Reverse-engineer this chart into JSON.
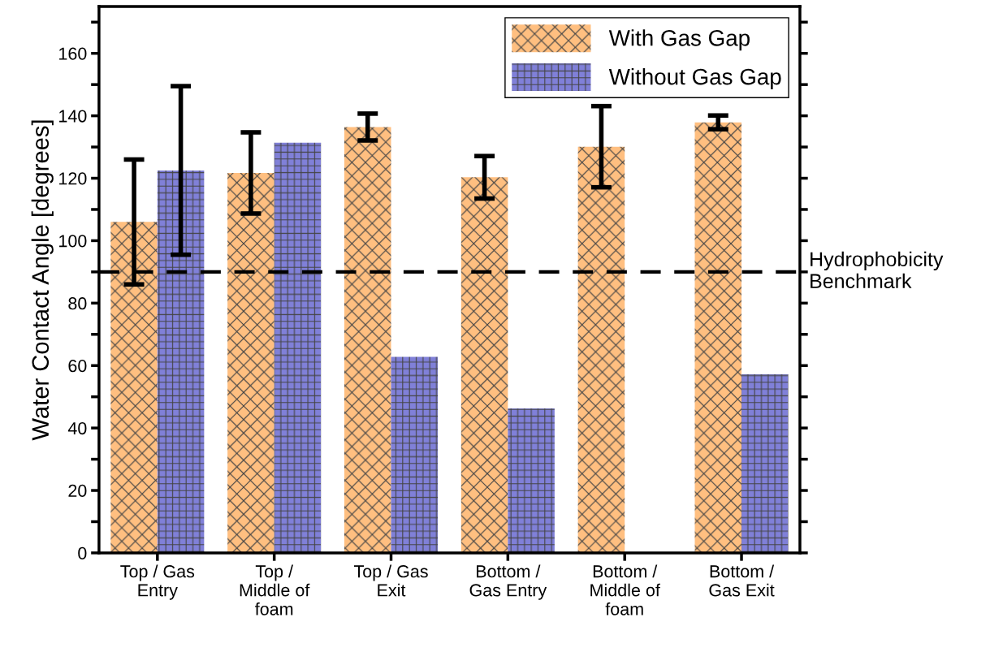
{
  "chart_data": {
    "type": "bar",
    "ylabel": "Water Contact Angle [degrees]",
    "categories": [
      "Top / Gas\nEntry",
      "Top /\nMiddle of\nfoam",
      "Top / Gas\nExit",
      "Bottom /\nGas Entry",
      "Bottom /\nMiddle of\nfoam",
      "Bottom /\nGas Exit"
    ],
    "series": [
      {
        "name": "With Gas Gap",
        "color": "#ffbf80",
        "values": [
          106,
          121.7,
          136.4,
          120.3,
          130.1,
          137.9
        ],
        "errors": [
          20,
          13,
          4.3,
          6.8,
          13,
          2.2
        ]
      },
      {
        "name": "Without Gas Gap",
        "color": "#8080d8",
        "values": [
          122.5,
          131.4,
          62.8,
          46.3,
          null,
          57.2
        ],
        "errors": [
          27,
          null,
          null,
          null,
          null,
          null
        ]
      }
    ],
    "ylim": [
      0,
      175
    ],
    "yticks": [
      0,
      {
        "value": 10,
        "label": null
      },
      20,
      {
        "value": 30,
        "label": null
      },
      40,
      {
        "value": 50,
        "label": null
      },
      60,
      {
        "value": 70,
        "label": null
      },
      80,
      {
        "value": 90,
        "label": null
      },
      100,
      {
        "value": 110,
        "label": null
      },
      120,
      {
        "value": 130,
        "label": null
      },
      140,
      {
        "value": 150,
        "label": null
      },
      160,
      {
        "value": 170,
        "label": null
      }
    ],
    "ref_lines": [
      {
        "axis": "y",
        "value": 90,
        "label": "Hydrophobicity\nBenchmark",
        "color": "#000000",
        "line_style": "dashed"
      }
    ],
    "grid": false,
    "legend": "top right"
  }
}
